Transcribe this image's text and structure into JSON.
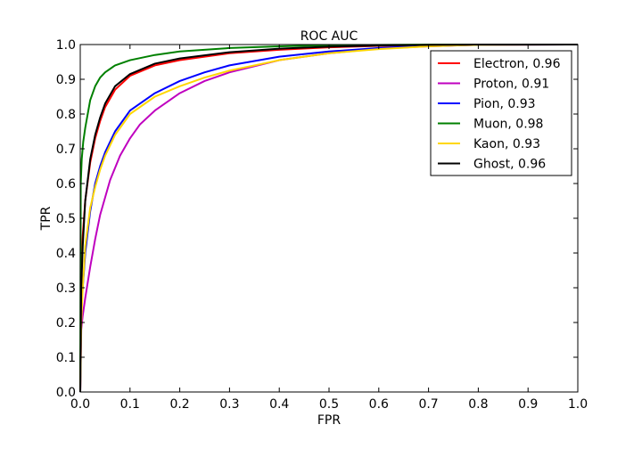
{
  "chart_data": {
    "type": "line",
    "title": "ROC AUC",
    "xlabel": "FPR",
    "ylabel": "TPR",
    "xlim": [
      0.0,
      1.0
    ],
    "ylim": [
      0.0,
      1.0
    ],
    "xticks": [
      "0.0",
      "0.1",
      "0.2",
      "0.3",
      "0.4",
      "0.5",
      "0.6",
      "0.7",
      "0.8",
      "0.9",
      "1.0"
    ],
    "yticks": [
      "0.0",
      "0.1",
      "0.2",
      "0.3",
      "0.4",
      "0.5",
      "0.6",
      "0.7",
      "0.8",
      "0.9",
      "1.0"
    ],
    "grid": false,
    "legend_position": "top-right",
    "series": [
      {
        "name": "Electron, 0.96",
        "color": "#ff0000",
        "x": [
          0,
          0.002,
          0.005,
          0.01,
          0.02,
          0.03,
          0.04,
          0.05,
          0.07,
          0.1,
          0.15,
          0.2,
          0.3,
          0.4,
          0.5,
          0.6,
          0.7,
          0.8,
          1.0
        ],
        "y": [
          0,
          0.35,
          0.45,
          0.55,
          0.66,
          0.73,
          0.78,
          0.82,
          0.87,
          0.91,
          0.94,
          0.955,
          0.975,
          0.985,
          0.992,
          0.996,
          0.998,
          1.0,
          1.0
        ]
      },
      {
        "name": "Proton, 0.91",
        "color": "#bf00bf",
        "x": [
          0,
          0.002,
          0.005,
          0.01,
          0.02,
          0.03,
          0.04,
          0.05,
          0.06,
          0.08,
          0.1,
          0.12,
          0.15,
          0.2,
          0.25,
          0.3,
          0.4,
          0.5,
          0.6,
          0.7,
          0.8,
          1.0
        ],
        "y": [
          0,
          0.18,
          0.22,
          0.27,
          0.36,
          0.44,
          0.51,
          0.56,
          0.61,
          0.68,
          0.73,
          0.77,
          0.81,
          0.86,
          0.895,
          0.92,
          0.955,
          0.975,
          0.988,
          0.995,
          0.999,
          1.0
        ]
      },
      {
        "name": "Pion, 0.93",
        "color": "#0000ff",
        "x": [
          0,
          0.002,
          0.005,
          0.01,
          0.02,
          0.03,
          0.04,
          0.05,
          0.07,
          0.1,
          0.15,
          0.2,
          0.25,
          0.3,
          0.4,
          0.5,
          0.6,
          0.7,
          0.8,
          1.0
        ],
        "y": [
          0,
          0.25,
          0.3,
          0.4,
          0.52,
          0.6,
          0.65,
          0.69,
          0.75,
          0.81,
          0.86,
          0.895,
          0.92,
          0.94,
          0.965,
          0.98,
          0.99,
          0.996,
          0.999,
          1.0
        ]
      },
      {
        "name": "Muon, 0.98",
        "color": "#008000",
        "x": [
          0,
          0.001,
          0.003,
          0.006,
          0.01,
          0.02,
          0.03,
          0.04,
          0.05,
          0.07,
          0.1,
          0.15,
          0.2,
          0.3,
          0.4,
          0.5,
          0.7,
          1.0
        ],
        "y": [
          0,
          0.6,
          0.67,
          0.72,
          0.76,
          0.84,
          0.88,
          0.905,
          0.92,
          0.94,
          0.955,
          0.97,
          0.98,
          0.99,
          0.995,
          0.998,
          1.0,
          1.0
        ]
      },
      {
        "name": "Kaon, 0.93",
        "color": "#ffd700",
        "x": [
          0,
          0.002,
          0.005,
          0.01,
          0.02,
          0.03,
          0.04,
          0.05,
          0.07,
          0.1,
          0.15,
          0.2,
          0.25,
          0.3,
          0.4,
          0.5,
          0.6,
          0.7,
          0.8,
          1.0
        ],
        "y": [
          0,
          0.2,
          0.3,
          0.42,
          0.53,
          0.59,
          0.64,
          0.68,
          0.74,
          0.8,
          0.85,
          0.88,
          0.905,
          0.925,
          0.955,
          0.975,
          0.987,
          0.995,
          0.999,
          1.0
        ]
      },
      {
        "name": "Ghost, 0.96",
        "color": "#000000",
        "x": [
          0,
          0.002,
          0.005,
          0.01,
          0.02,
          0.03,
          0.04,
          0.05,
          0.07,
          0.1,
          0.15,
          0.2,
          0.3,
          0.4,
          0.5,
          0.6,
          0.7,
          0.8,
          1.0
        ],
        "y": [
          0,
          0.3,
          0.42,
          0.55,
          0.67,
          0.74,
          0.79,
          0.83,
          0.88,
          0.915,
          0.945,
          0.96,
          0.978,
          0.988,
          0.994,
          0.997,
          0.999,
          1.0,
          1.0
        ]
      }
    ]
  }
}
